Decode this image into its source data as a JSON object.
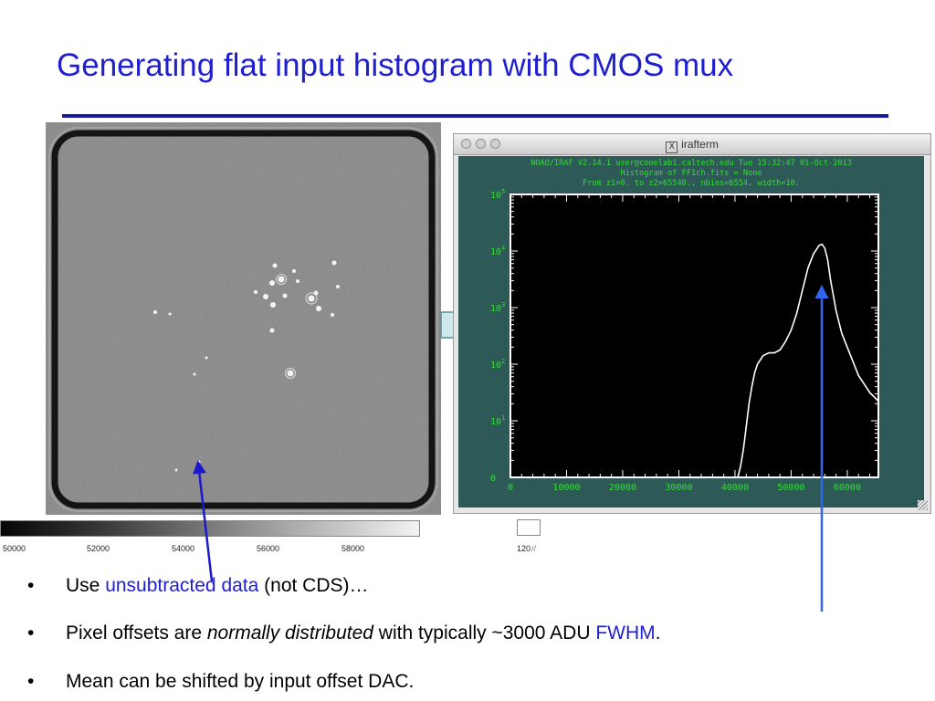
{
  "slide": {
    "title": "Generating flat input histogram with CMOS mux"
  },
  "colorbar": {
    "ticks": [
      "50000",
      "52000",
      "54000",
      "56000",
      "58000"
    ],
    "cropped_label": "120"
  },
  "irafterm": {
    "window_title": "irafterm",
    "header_lines": [
      "NOAO/IRAF V2.14.1 user@cooelab1.caltech.edu Tue 15:32:47 01-Oct-2013",
      "Histogram of FF1ch.fits = None",
      "From z1=0. to z2=65540., nbins=6554, width=10."
    ]
  },
  "bullets": [
    {
      "pre": "Use ",
      "highlight": "unsubtracted data",
      "post": " (not CDS)…"
    },
    {
      "pre": "Pixel offsets are ",
      "italic": "normally distributed",
      "mid": " with typically ~3000 ADU ",
      "highlight": "FWHM",
      "post": "."
    },
    {
      "pre": "Mean can be shifted by input offset DAC."
    }
  ],
  "chart_data": {
    "type": "line",
    "x_tick_labels": [
      "0",
      "10000",
      "20000",
      "30000",
      "40000",
      "50000",
      "60000"
    ],
    "y_tick_labels": [
      {
        "base": "0",
        "exp": ""
      },
      {
        "base": "10",
        "exp": "1"
      },
      {
        "base": "10",
        "exp": "2"
      },
      {
        "base": "10",
        "exp": "3"
      },
      {
        "base": "10",
        "exp": "4"
      },
      {
        "base": "10",
        "exp": "5"
      }
    ],
    "xlim": [
      0,
      65540
    ],
    "ylim_log10": [
      0,
      5
    ],
    "y_scale": "log",
    "series": [
      {
        "x": [
          40500,
          41000,
          41500,
          42000,
          42500,
          43000,
          43500,
          44000,
          45000,
          46000,
          47000,
          48000,
          49000,
          50000,
          51000,
          52000,
          53000,
          54000,
          55000,
          55500,
          56000,
          56500,
          57000,
          58000,
          59000,
          60000,
          61000,
          62000,
          63000,
          64000,
          65500
        ],
        "log10_counts": [
          0,
          0.2,
          0.5,
          0.9,
          1.3,
          1.6,
          1.85,
          2.0,
          2.15,
          2.2,
          2.2,
          2.25,
          2.4,
          2.6,
          2.9,
          3.3,
          3.7,
          3.95,
          4.1,
          4.12,
          4.05,
          3.85,
          3.5,
          2.95,
          2.55,
          2.3,
          2.05,
          1.8,
          1.65,
          1.5,
          1.35
        ]
      }
    ],
    "line_color": "#ffffff",
    "background": "#000000",
    "frame_color": "#ffffff",
    "tick_label_color": "#33dd33"
  }
}
